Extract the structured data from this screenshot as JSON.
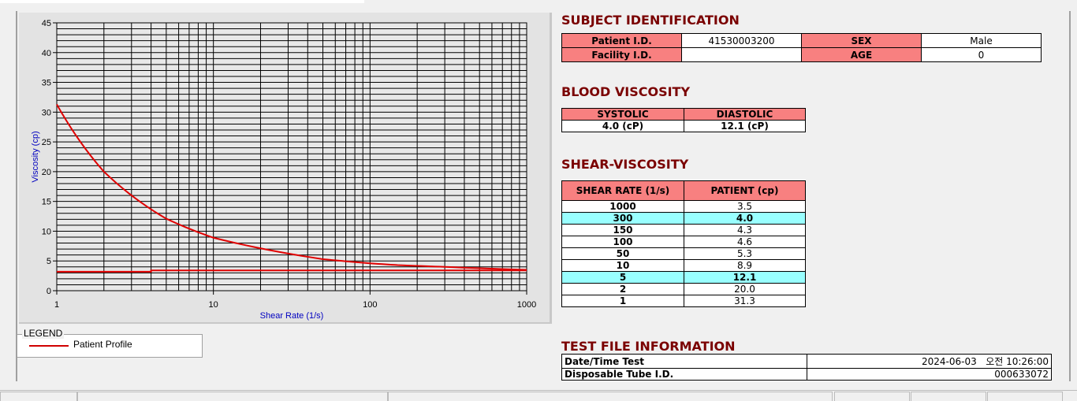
{
  "subject": {
    "title": "SUBJECT IDENTIFICATION",
    "patient_id_label": "Patient I.D.",
    "patient_id": "41530003200",
    "sex_label": "SEX",
    "sex": "Male",
    "facility_label": "Facility I.D.",
    "facility": "",
    "age_label": "AGE",
    "age": "0"
  },
  "blood": {
    "title": "BLOOD VISCOSITY",
    "systolic_label": "SYSTOLIC",
    "diastolic_label": "DIASTOLIC",
    "systolic": "4.0 (cP)",
    "diastolic": "12.1 (cP)"
  },
  "shear": {
    "title": "SHEAR-VISCOSITY",
    "col1": "SHEAR RATE (1/s)",
    "col2": "PATIENT (cp)",
    "rows": [
      {
        "rate": "1000",
        "value": "3.5"
      },
      {
        "rate": "300",
        "value": "4.0",
        "hl": true
      },
      {
        "rate": "150",
        "value": "4.3"
      },
      {
        "rate": "100",
        "value": "4.6"
      },
      {
        "rate": "50",
        "value": "5.3"
      },
      {
        "rate": "10",
        "value": "8.9"
      },
      {
        "rate": "5",
        "value": "12.1",
        "hl": true
      },
      {
        "rate": "2",
        "value": "20.0"
      },
      {
        "rate": "1",
        "value": "31.3"
      }
    ]
  },
  "testfile": {
    "title": "TEST FILE INFORMATION",
    "date_label": "Date/Time Test",
    "date": "2024-06-03   오전 10:26:00",
    "tube_label": "Disposable Tube I.D.",
    "tube": "000633072"
  },
  "legend": {
    "title": "LEGEND",
    "item": "Patient Profile"
  },
  "chart_data": {
    "type": "line",
    "xlabel": "Shear Rate (1/s)",
    "ylabel": "Viscosity (cp)",
    "xscale": "log",
    "xlim": [
      1,
      1000
    ],
    "ylim": [
      0,
      45
    ],
    "grid": true,
    "xticks": [
      "1",
      "10",
      "100",
      "1000"
    ],
    "yticks": [
      "0",
      "5",
      "10",
      "15",
      "20",
      "25",
      "30",
      "35",
      "40",
      "45"
    ],
    "series": [
      {
        "name": "Patient Profile",
        "color": "#e00000",
        "x": [
          1,
          2,
          5,
          10,
          50,
          100,
          150,
          300,
          1000
        ],
        "y": [
          31.3,
          20.0,
          12.1,
          8.9,
          5.3,
          4.6,
          4.3,
          4.0,
          3.5
        ]
      },
      {
        "color": "#e00000",
        "x": [
          1,
          4,
          4,
          1000
        ],
        "y": [
          3.2,
          3.2,
          3.4,
          3.4
        ]
      }
    ]
  }
}
